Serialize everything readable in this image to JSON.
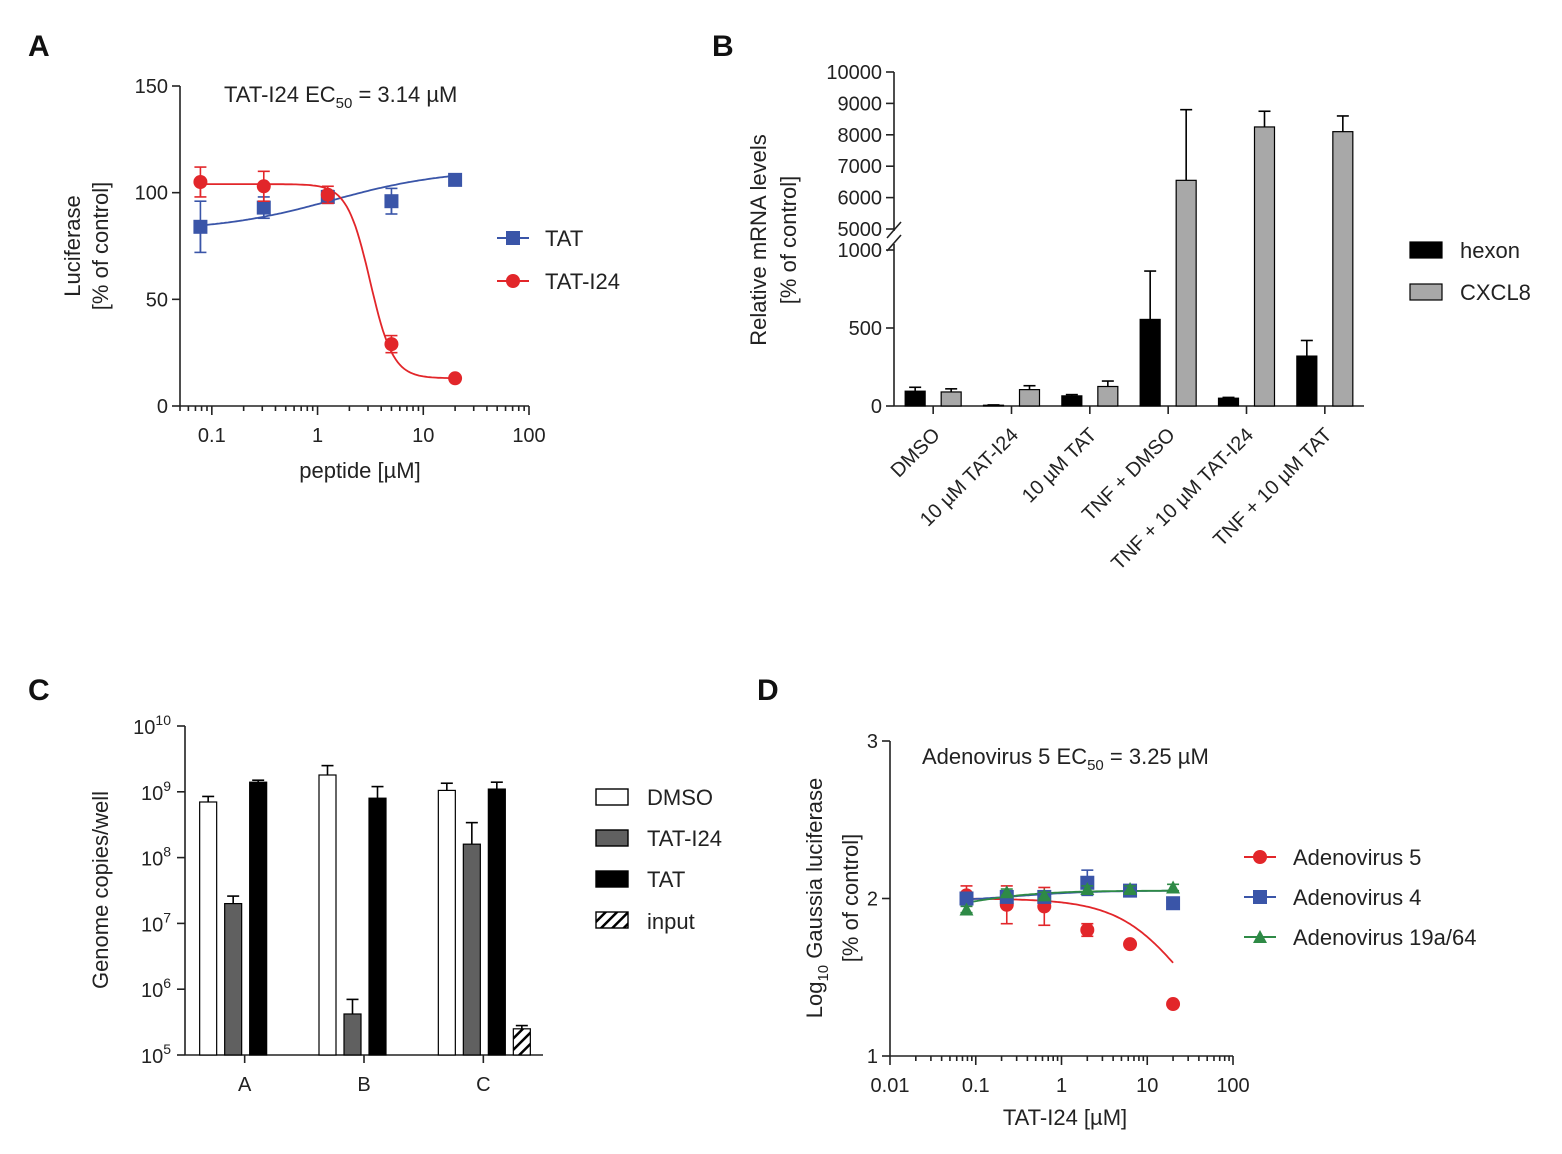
{
  "colors": {
    "blue": "#3a55a8",
    "red": "#e2262a",
    "green": "#2e8a46",
    "black": "#000000",
    "grey": "#a8a8a8",
    "darkgrey": "#606060",
    "white": "#ffffff"
  },
  "chart_data": [
    {
      "panel": "A",
      "type": "scatter",
      "annotation": {
        "main": "TAT-I24 EC",
        "sub": "50",
        "rest": " = 3.14 µM"
      },
      "xlabel": "peptide [µM]",
      "ylabel": [
        "Luciferase",
        "[% of control]"
      ],
      "xscale": "log",
      "xlim": [
        0.05,
        100
      ],
      "ylim": [
        0,
        150
      ],
      "xticks": [
        "0.1",
        "1",
        "10",
        "100"
      ],
      "yticks": [
        "0",
        "50",
        "100",
        "150"
      ],
      "x": [
        0.078,
        0.31,
        1.25,
        5,
        20
      ],
      "series": [
        {
          "name": "TAT",
          "marker": "square",
          "color": "#3a55a8",
          "values": [
            84,
            93,
            98,
            96,
            106
          ],
          "errors": [
            12,
            5,
            3,
            6,
            2
          ]
        },
        {
          "name": "TAT-I24",
          "marker": "circle",
          "color": "#e2262a",
          "values": [
            105,
            103,
            99,
            29,
            13
          ],
          "errors": [
            7,
            7,
            4,
            4,
            1
          ]
        }
      ],
      "legend": [
        "TAT",
        "TAT-I24"
      ]
    },
    {
      "panel": "B",
      "type": "bar",
      "ylabel": [
        "Relative mRNA levels",
        "[% of control]"
      ],
      "axis_break": [
        1000,
        5000
      ],
      "lower_yticks": [
        "0",
        "500",
        "1000"
      ],
      "upper_yticks": [
        "5000",
        "6000",
        "7000",
        "8000",
        "9000",
        "10000"
      ],
      "categories": [
        "DMSO",
        "10 µM TAT-I24",
        "10 µM TAT",
        "TNF + DMSO",
        "TNF + 10 µM TAT-I24",
        "TNF + 10 µM TAT"
      ],
      "series": [
        {
          "name": "hexon",
          "color": "#000000",
          "values": [
            95,
            5,
            65,
            555,
            50,
            320
          ],
          "errors": [
            25,
            2,
            8,
            310,
            5,
            100
          ]
        },
        {
          "name": "CXCL8",
          "color": "#a8a8a8",
          "values": [
            90,
            105,
            125,
            6550,
            8250,
            8100
          ],
          "errors": [
            20,
            25,
            35,
            2250,
            500,
            500
          ]
        }
      ],
      "legend": [
        "hexon",
        "CXCL8"
      ]
    },
    {
      "panel": "C",
      "type": "bar",
      "ylabel": "Genome copies/well",
      "yscale": "log",
      "ylim": [
        100000,
        10000000000
      ],
      "yticks": [
        {
          "base": "10",
          "exp": "5"
        },
        {
          "base": "10",
          "exp": "6"
        },
        {
          "base": "10",
          "exp": "7"
        },
        {
          "base": "10",
          "exp": "8"
        },
        {
          "base": "10",
          "exp": "9"
        },
        {
          "base": "10",
          "exp": "10"
        }
      ],
      "categories": [
        "A",
        "B",
        "C"
      ],
      "series": [
        {
          "name": "DMSO",
          "fill": "white",
          "values": [
            700000000,
            1800000000,
            1050000000
          ],
          "errors": [
            150000000,
            700000000,
            300000000
          ]
        },
        {
          "name": "TAT-I24",
          "fill": "darkgrey",
          "values": [
            20000000,
            420000,
            160000000
          ],
          "errors": [
            6000000,
            280000,
            180000000
          ]
        },
        {
          "name": "TAT",
          "fill": "black",
          "values": [
            1400000000,
            800000000,
            1100000000
          ],
          "errors": [
            100000000,
            400000000,
            300000000
          ]
        },
        {
          "name": "input",
          "fill": "hatched",
          "values": [
            null,
            null,
            250000
          ],
          "errors": [
            null,
            null,
            30000
          ]
        }
      ],
      "legend": [
        "DMSO",
        "TAT-I24",
        "TAT",
        "input"
      ]
    },
    {
      "panel": "D",
      "type": "scatter",
      "annotation": {
        "main": "Adenovirus 5 EC",
        "sub": "50",
        "rest": " = 3.25 µM"
      },
      "xlabel": "TAT-I24 [µM]",
      "ylabel": {
        "pre": "Log",
        "sub": "10",
        "post": " Gaussia luciferase",
        "line2": "[% of control]"
      },
      "xscale": "log",
      "xlim": [
        0.01,
        100
      ],
      "ylim": [
        1,
        3
      ],
      "xticks": [
        "0.01",
        "0.1",
        "1",
        "10",
        "100"
      ],
      "yticks": [
        "1",
        "2",
        "3"
      ],
      "x": [
        0.078,
        0.23,
        0.63,
        2,
        6.3,
        20
      ],
      "series": [
        {
          "name": "Adenovirus 5",
          "marker": "circle",
          "color": "#e2262a",
          "values": [
            2.02,
            1.96,
            1.95,
            1.8,
            1.71,
            1.33
          ],
          "errors": [
            0.06,
            0.12,
            0.12,
            0.04,
            0.01,
            0.01
          ]
        },
        {
          "name": "Adenovirus 4",
          "marker": "square",
          "color": "#3a55a8",
          "values": [
            2.0,
            2.01,
            2.01,
            2.1,
            2.05,
            1.97
          ],
          "errors": [
            0.03,
            0.02,
            0.02,
            0.08,
            0.02,
            0.01
          ]
        },
        {
          "name": "Adenovirus 19a/64",
          "marker": "triangle",
          "color": "#2e8a46",
          "values": [
            1.93,
            2.04,
            2.02,
            2.06,
            2.06,
            2.07
          ],
          "errors": [
            0.02,
            0.02,
            0.02,
            0.02,
            0.02,
            0.02
          ]
        }
      ],
      "legend": [
        "Adenovirus 5",
        "Adenovirus 4",
        "Adenovirus 19a/64"
      ]
    }
  ]
}
